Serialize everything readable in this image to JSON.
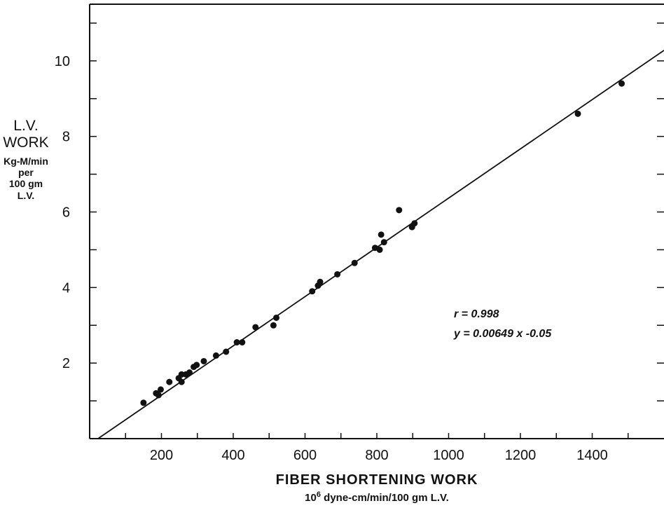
{
  "chart_data": {
    "type": "scatter",
    "ylabel_lines": [
      "L.V.",
      "WORK"
    ],
    "ylabel_unit_lines": [
      "Kg-M/min",
      "per",
      "100 gm L.V."
    ],
    "xlabel": "FIBER SHORTENING WORK",
    "xlabel_unit_exp": "6",
    "xlabel_unit_prefix": "10",
    "xlabel_unit_rest": " dyne-cm/min/100 gm L.V.",
    "xlim": [
      0,
      1600
    ],
    "ylim": [
      0,
      11.5
    ],
    "x_ticks": [
      200,
      400,
      600,
      800,
      1000,
      1200,
      1400
    ],
    "x_tick_labels": [
      "200",
      "400",
      "600",
      "800",
      "1000",
      "1200",
      "1400"
    ],
    "y_ticks": [
      2,
      4,
      6,
      8,
      10
    ],
    "y_tick_labels": [
      "2",
      "4",
      "6",
      "8",
      "10"
    ],
    "annotation_r": "r = 0.998",
    "annotation_eq": "y = 0.00649 x -0.05",
    "regression": {
      "slope": 0.00649,
      "intercept": -0.05
    },
    "points": [
      {
        "x": 150,
        "y": 0.95
      },
      {
        "x": 185,
        "y": 1.2
      },
      {
        "x": 192,
        "y": 1.15
      },
      {
        "x": 198,
        "y": 1.3
      },
      {
        "x": 222,
        "y": 1.5
      },
      {
        "x": 248,
        "y": 1.6
      },
      {
        "x": 256,
        "y": 1.7
      },
      {
        "x": 256,
        "y": 1.5
      },
      {
        "x": 268,
        "y": 1.7
      },
      {
        "x": 278,
        "y": 1.75
      },
      {
        "x": 290,
        "y": 1.9
      },
      {
        "x": 298,
        "y": 1.95
      },
      {
        "x": 318,
        "y": 2.05
      },
      {
        "x": 352,
        "y": 2.2
      },
      {
        "x": 380,
        "y": 2.3
      },
      {
        "x": 410,
        "y": 2.55
      },
      {
        "x": 425,
        "y": 2.55
      },
      {
        "x": 462,
        "y": 2.95
      },
      {
        "x": 512,
        "y": 3.0
      },
      {
        "x": 520,
        "y": 3.2
      },
      {
        "x": 620,
        "y": 3.9
      },
      {
        "x": 636,
        "y": 4.05
      },
      {
        "x": 642,
        "y": 4.15
      },
      {
        "x": 690,
        "y": 4.35
      },
      {
        "x": 738,
        "y": 4.65
      },
      {
        "x": 795,
        "y": 5.05
      },
      {
        "x": 808,
        "y": 5.0
      },
      {
        "x": 812,
        "y": 5.4
      },
      {
        "x": 820,
        "y": 5.2
      },
      {
        "x": 862,
        "y": 6.05
      },
      {
        "x": 898,
        "y": 5.6
      },
      {
        "x": 905,
        "y": 5.7
      },
      {
        "x": 1360,
        "y": 8.6
      },
      {
        "x": 1482,
        "y": 9.4
      }
    ],
    "grid": false
  }
}
